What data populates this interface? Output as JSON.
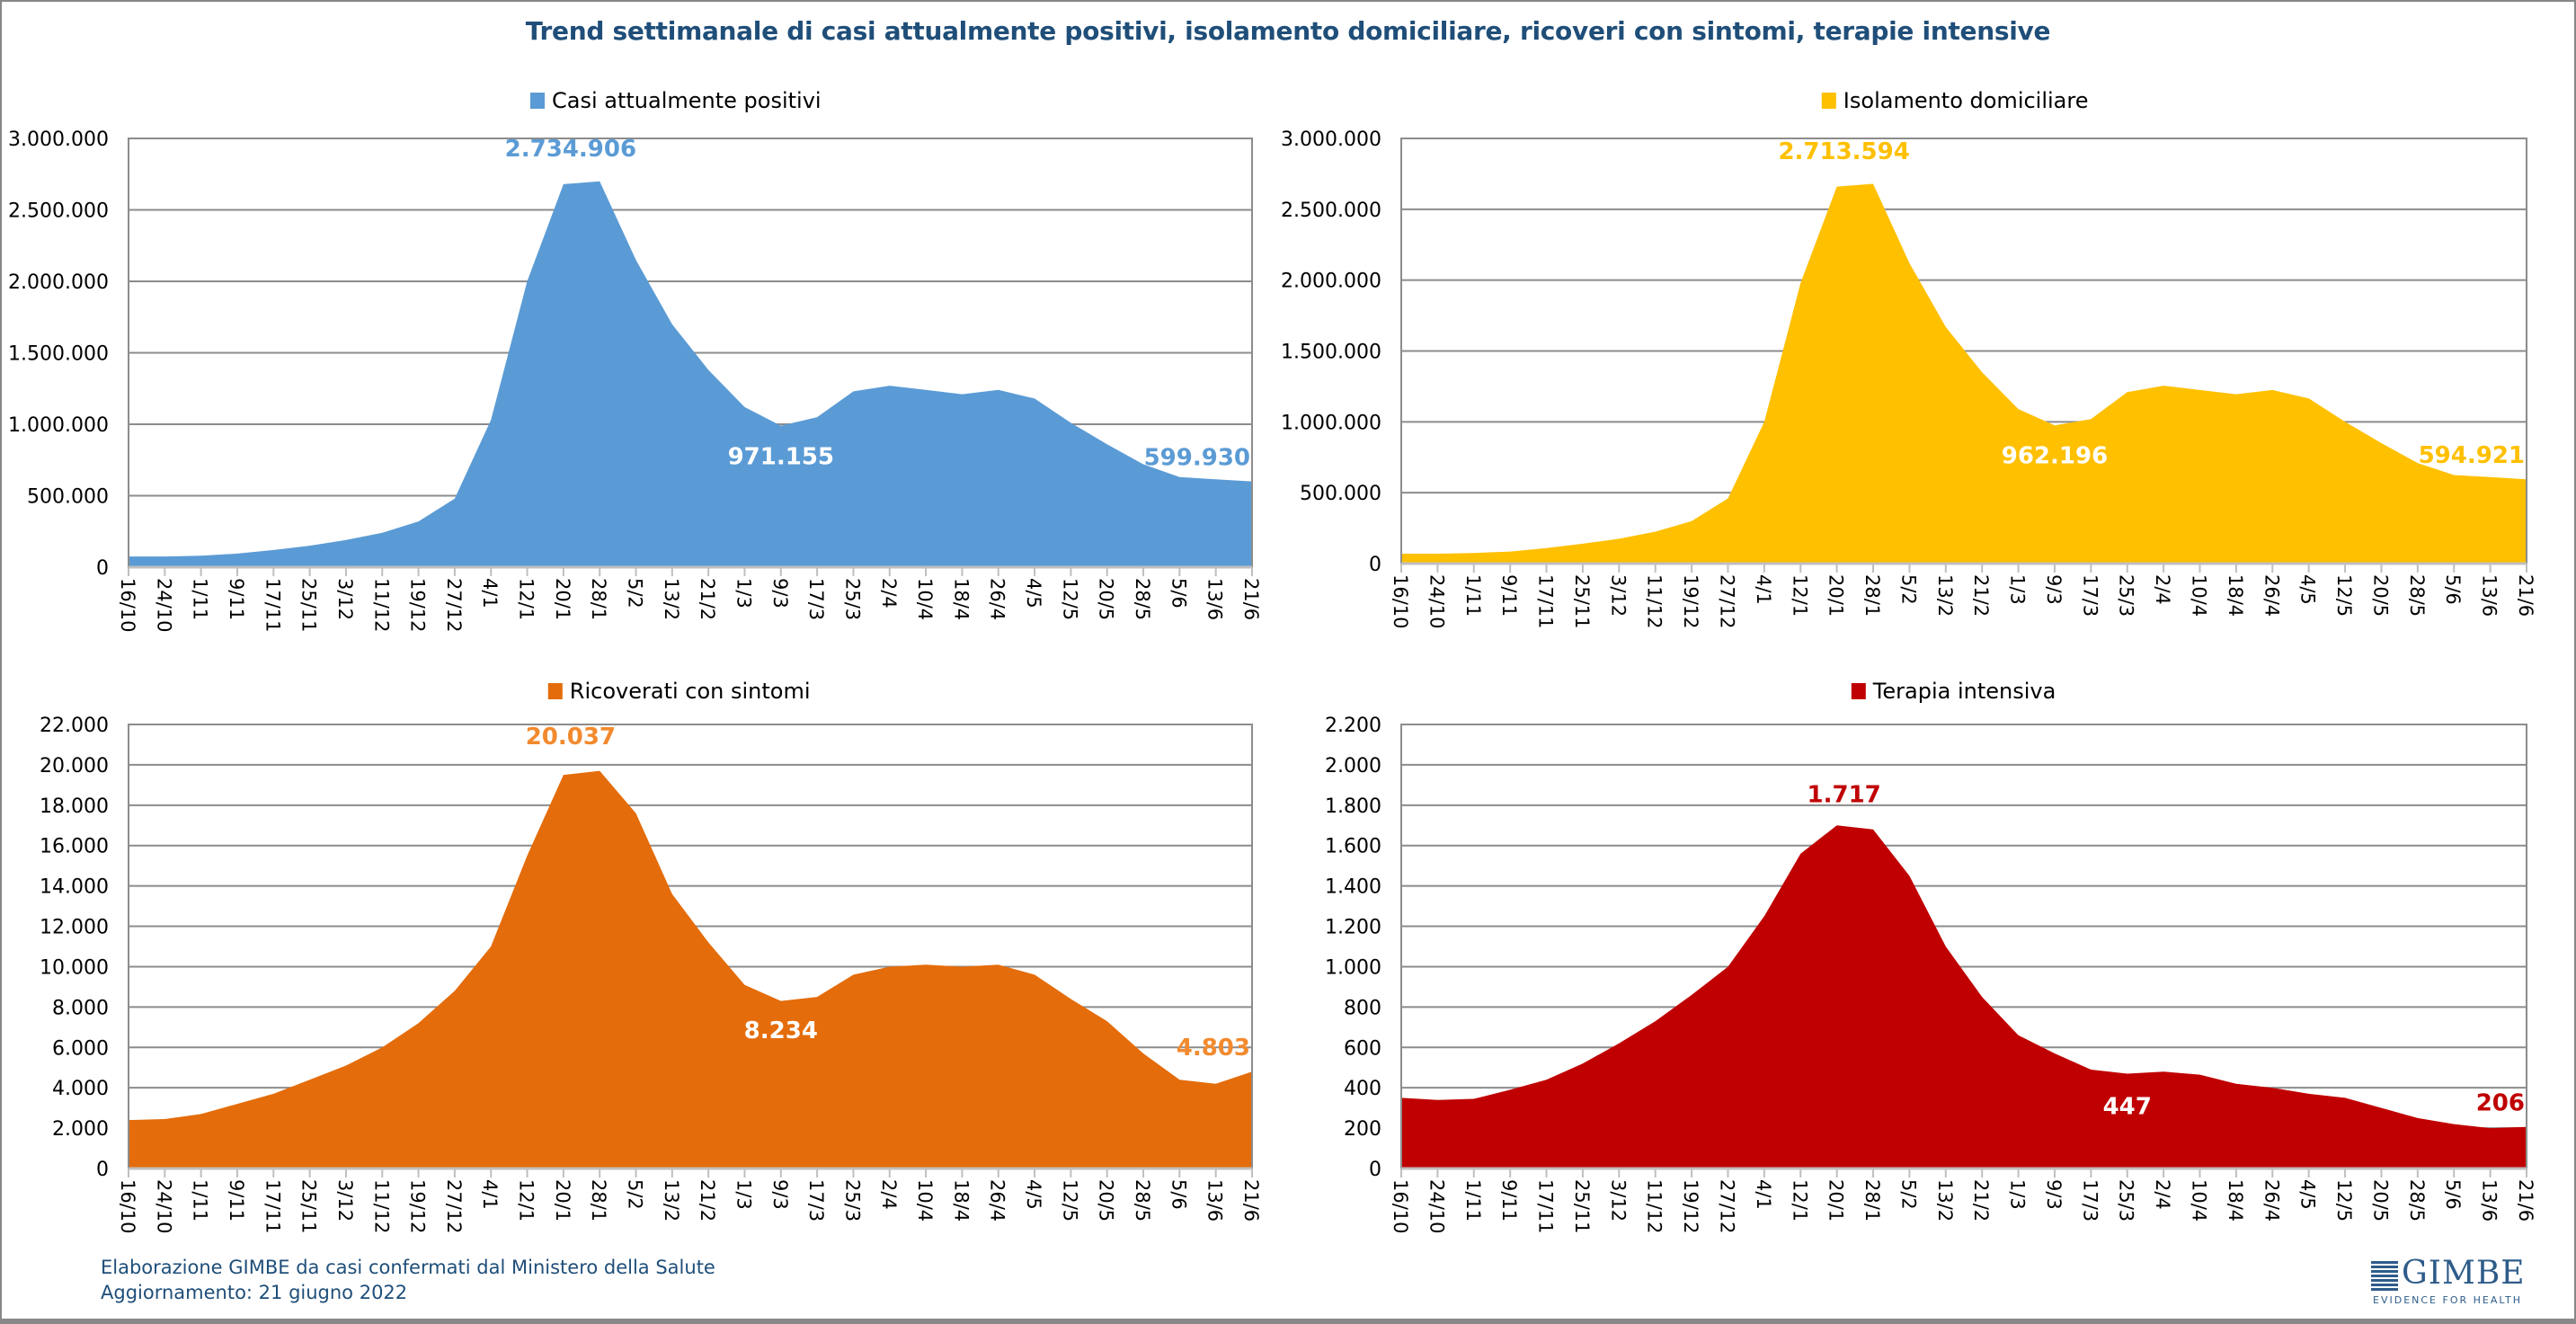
{
  "title": "Trend settimanale di casi attualmente positivi, isolamento domiciliare, ricoveri con sintomi, terapie intensive",
  "footer": {
    "source": "Elaborazione GIMBE da casi confermati dal Ministero della Salute",
    "updated": "Aggiornamento: 21 giugno 2022"
  },
  "logo": {
    "name": "GIMBE",
    "tagline": "EVIDENCE FOR HEALTH"
  },
  "chart_data": [
    {
      "type": "area",
      "legend": "Casi attualmente positivi",
      "legend_position": "top",
      "color": "#5B9BD5",
      "label_color": "#5B9BD5",
      "ylim": [
        0,
        3000000
      ],
      "ystep": 500000,
      "grid": true,
      "categories": [
        "16/10",
        "24/10",
        "1/11",
        "9/11",
        "17/11",
        "25/11",
        "3/12",
        "11/12",
        "19/12",
        "27/12",
        "4/1",
        "12/1",
        "20/1",
        "28/1",
        "5/2",
        "13/2",
        "21/2",
        "1/3",
        "9/3",
        "17/3",
        "25/3",
        "2/4",
        "10/4",
        "18/4",
        "26/4",
        "4/5",
        "12/5",
        "20/5",
        "28/5",
        "5/6",
        "13/6",
        "21/6"
      ],
      "values": [
        75000,
        75000,
        80000,
        95000,
        120000,
        150000,
        190000,
        240000,
        320000,
        480000,
        1030000,
        2000000,
        2680000,
        2700000,
        2150000,
        1700000,
        1380000,
        1120000,
        990000,
        1050000,
        1230000,
        1270000,
        1240000,
        1210000,
        1240000,
        1180000,
        1010000,
        860000,
        720000,
        630000,
        615000,
        600000
      ],
      "annotations": [
        {
          "text": "2.734.906",
          "value": 2734906,
          "at": "20/1",
          "style": "peak"
        },
        {
          "text": "971.155",
          "value": 971155,
          "at": "9/3",
          "style": "min"
        },
        {
          "text": "599.930",
          "value": 599930,
          "at": "21/6",
          "style": "last"
        }
      ]
    },
    {
      "type": "area",
      "legend": "Isolamento domiciliare",
      "legend_position": "top",
      "color": "#FFC000",
      "label_color": "#FFC000",
      "ylim": [
        0,
        3000000
      ],
      "ystep": 500000,
      "grid": true,
      "categories": [
        "16/10",
        "24/10",
        "1/11",
        "9/11",
        "17/11",
        "25/11",
        "3/12",
        "11/12",
        "19/12",
        "27/12",
        "4/1",
        "12/1",
        "20/1",
        "28/1",
        "5/2",
        "13/2",
        "21/2",
        "1/3",
        "9/3",
        "17/3",
        "25/3",
        "2/4",
        "10/4",
        "18/4",
        "26/4",
        "4/5",
        "12/5",
        "20/5",
        "28/5",
        "5/6",
        "13/6",
        "21/6"
      ],
      "values": [
        70000,
        70000,
        75000,
        85000,
        110000,
        140000,
        175000,
        225000,
        300000,
        460000,
        1000000,
        1980000,
        2660000,
        2680000,
        2120000,
        1670000,
        1350000,
        1090000,
        975000,
        1020000,
        1210000,
        1255000,
        1225000,
        1195000,
        1225000,
        1165000,
        1000000,
        850000,
        710000,
        625000,
        610000,
        595000
      ],
      "annotations": [
        {
          "text": "2.713.594",
          "value": 2713594,
          "at": "20/1",
          "style": "peak"
        },
        {
          "text": "962.196",
          "value": 962196,
          "at": "9/3",
          "style": "min"
        },
        {
          "text": "594.921",
          "value": 594921,
          "at": "21/6",
          "style": "last"
        }
      ]
    },
    {
      "type": "area",
      "legend": "Ricoverati con sintomi",
      "legend_position": "top",
      "color": "#E46C0A",
      "label_color": "#F28A2E",
      "ylim": [
        0,
        22000
      ],
      "ystep": 2000,
      "grid": true,
      "categories": [
        "16/10",
        "24/10",
        "1/11",
        "9/11",
        "17/11",
        "25/11",
        "3/12",
        "11/12",
        "19/12",
        "27/12",
        "4/1",
        "12/1",
        "20/1",
        "28/1",
        "5/2",
        "13/2",
        "21/2",
        "1/3",
        "9/3",
        "17/3",
        "25/3",
        "2/4",
        "10/4",
        "18/4",
        "26/4",
        "4/5",
        "12/5",
        "20/5",
        "28/5",
        "5/6",
        "13/6",
        "21/6"
      ],
      "values": [
        2400,
        2450,
        2700,
        3200,
        3700,
        4400,
        5100,
        6000,
        7200,
        8800,
        11000,
        15500,
        19500,
        19700,
        17600,
        13600,
        11200,
        9100,
        8300,
        8500,
        9600,
        10000,
        10100,
        10000,
        10100,
        9600,
        8400,
        7300,
        5700,
        4400,
        4200,
        4803
      ],
      "annotations": [
        {
          "text": "20.037",
          "value": 20037,
          "at": "20/1",
          "style": "peak"
        },
        {
          "text": "8.234",
          "value": 8234,
          "at": "9/3",
          "style": "min"
        },
        {
          "text": "4.803",
          "value": 4803,
          "at": "21/6",
          "style": "last"
        }
      ]
    },
    {
      "type": "area",
      "legend": "Terapia intensiva",
      "legend_position": "top",
      "color": "#C00000",
      "label_color": "#C00000",
      "ylim": [
        0,
        2200
      ],
      "ystep": 200,
      "grid": true,
      "categories": [
        "16/10",
        "24/10",
        "1/11",
        "9/11",
        "17/11",
        "25/11",
        "3/12",
        "11/12",
        "19/12",
        "27/12",
        "4/1",
        "12/1",
        "20/1",
        "28/1",
        "5/2",
        "13/2",
        "21/2",
        "1/3",
        "9/3",
        "17/3",
        "25/3",
        "2/4",
        "10/4",
        "18/4",
        "26/4",
        "4/5",
        "12/5",
        "20/5",
        "28/5",
        "5/6",
        "13/6",
        "21/6"
      ],
      "values": [
        350,
        340,
        345,
        390,
        440,
        520,
        620,
        730,
        860,
        1000,
        1250,
        1560,
        1700,
        1680,
        1450,
        1100,
        850,
        660,
        570,
        490,
        470,
        480,
        465,
        420,
        400,
        370,
        350,
        300,
        250,
        220,
        200,
        206
      ],
      "annotations": [
        {
          "text": "1.717",
          "value": 1717,
          "at": "20/1",
          "style": "peak"
        },
        {
          "text": "447",
          "value": 447,
          "at": "25/3",
          "style": "min"
        },
        {
          "text": "206",
          "value": 206,
          "at": "21/6",
          "style": "last"
        }
      ]
    }
  ]
}
